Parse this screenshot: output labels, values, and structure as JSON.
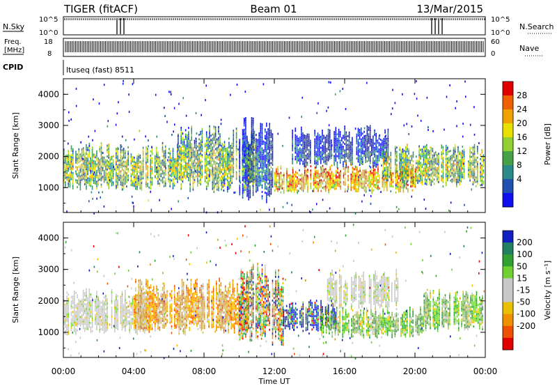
{
  "header": {
    "radar_title": "TIGER (fitACF)",
    "beam": "Beam 01",
    "date": "13/Mar/2015"
  },
  "top_panels": {
    "nsky_label": "N.Sky",
    "nsky_ticks": [
      "10^5",
      "10^0"
    ],
    "nsky_right_ticks": [
      "10^5",
      "10^0"
    ],
    "nsearch_label": "N.Search",
    "freq_label_1": "Freq.",
    "freq_label_2": "[MHz]",
    "freq_ticks": [
      "18",
      "8"
    ],
    "nave_ticks": [
      "60",
      "0"
    ],
    "nave_label": "Nave",
    "cpid_label": "CPID",
    "cpid_value": "ltuseq (fast) 8511"
  },
  "chart_data": [
    {
      "type": "heatmap",
      "name": "power",
      "ylabel": "Slant Range [km]",
      "xlabel": "Time UT",
      "xlim": [
        0,
        24
      ],
      "ylim": [
        200,
        4500
      ],
      "x_ticks": [
        "00:00",
        "04:00",
        "08:00",
        "12:00",
        "16:00",
        "20:00",
        "00:00"
      ],
      "y_ticks": [
        1000,
        2000,
        3000,
        4000
      ],
      "colorbar": {
        "label": "Power [dB]",
        "ticks": [
          "28",
          "24",
          "20",
          "16",
          "12",
          "8",
          "4"
        ],
        "range": [
          0,
          30
        ],
        "colors": [
          "#1010ee",
          "#2050b0",
          "#2a8a8a",
          "#46a046",
          "#90d030",
          "#e8e000",
          "#f0a000",
          "#ee6000",
          "#e00000"
        ]
      },
      "regions": [
        {
          "t0": 0.0,
          "t1": 6.5,
          "r0": 900,
          "r1": 2400,
          "level": "mid"
        },
        {
          "t0": 6.5,
          "t1": 11.0,
          "r0": 800,
          "r1": 3000,
          "level": "mid"
        },
        {
          "t0": 10.0,
          "t1": 12.0,
          "r0": 500,
          "r1": 3300,
          "level": "low"
        },
        {
          "t0": 12.0,
          "t1": 20.0,
          "r0": 800,
          "r1": 1700,
          "level": "high"
        },
        {
          "t0": 13.0,
          "t1": 18.5,
          "r0": 1600,
          "r1": 3000,
          "level": "low"
        },
        {
          "t0": 18.0,
          "t1": 23.9,
          "r0": 1000,
          "r1": 2400,
          "level": "mid"
        }
      ]
    },
    {
      "type": "heatmap",
      "name": "velocity",
      "ylabel": "Slant Range [km]",
      "xlabel": "Time UT",
      "xlim": [
        0,
        24
      ],
      "ylim": [
        200,
        4500
      ],
      "x_ticks": [
        "00:00",
        "04:00",
        "08:00",
        "12:00",
        "16:00",
        "20:00",
        "00:00"
      ],
      "y_ticks": [
        1000,
        2000,
        3000,
        4000
      ],
      "colorbar": {
        "label": "Velocity [m s⁻¹]",
        "ticks": [
          "200",
          "100",
          "50",
          "15",
          "-15",
          "-50",
          "-100",
          "-200"
        ],
        "range": [
          -250,
          250
        ],
        "colors": [
          "#e00000",
          "#ee5000",
          "#f09000",
          "#e8c000",
          "#c8c8c8",
          "#c8c8c8",
          "#70d030",
          "#30a030",
          "#208060",
          "#1020c0"
        ]
      },
      "regions": [
        {
          "t0": 0.0,
          "t1": 5.0,
          "r0": 900,
          "r1": 2400,
          "level": "grey"
        },
        {
          "t0": 4.0,
          "t1": 10.5,
          "r0": 900,
          "r1": 2700,
          "level": "orange"
        },
        {
          "t0": 10.0,
          "t1": 12.5,
          "r0": 500,
          "r1": 3200,
          "level": "mixed"
        },
        {
          "t0": 12.5,
          "t1": 15.5,
          "r0": 1000,
          "r1": 2000,
          "level": "blue"
        },
        {
          "t0": 14.5,
          "t1": 20.5,
          "r0": 800,
          "r1": 1800,
          "level": "green"
        },
        {
          "t0": 15.0,
          "t1": 19.0,
          "r0": 1700,
          "r1": 3000,
          "level": "grey"
        },
        {
          "t0": 20.5,
          "t1": 23.9,
          "r0": 1000,
          "r1": 2400,
          "level": "green"
        }
      ]
    }
  ]
}
